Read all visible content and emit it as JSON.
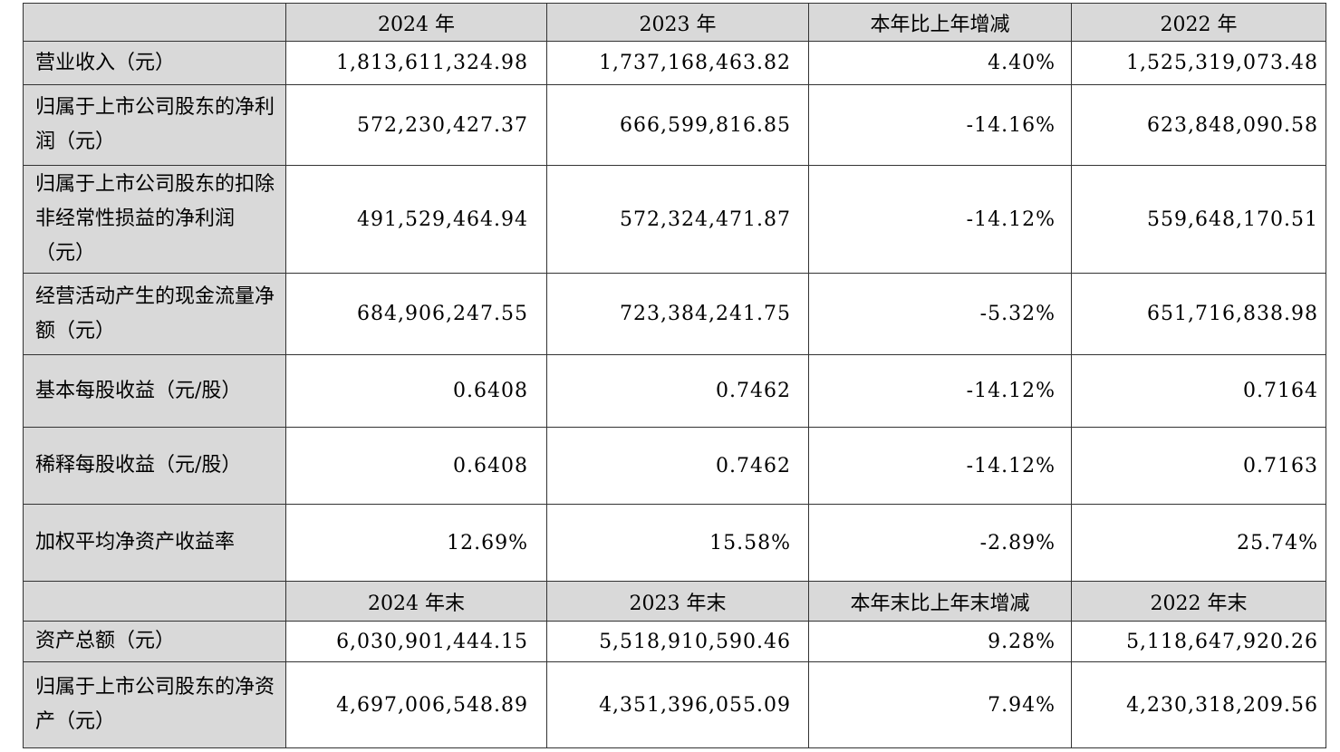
{
  "page": {
    "background": "#ffffff"
  },
  "table": {
    "type": "financial-summary-table",
    "colors": {
      "header_bg": "#d9d9d9",
      "label_bg": "#d9d9d9",
      "cell_bg": "#ffffff",
      "border": "#333333",
      "text": "#000000"
    },
    "sections": [
      {
        "header": {
          "col0": "",
          "col1": "2024 年",
          "col2": "2023 年",
          "col3": "本年比上年增减",
          "col4": "2022 年"
        },
        "rows": [
          {
            "label": "营业收入（元）",
            "values": [
              "1,813,611,324.98",
              "1,737,168,463.82",
              "4.40%",
              "1,525,319,073.48"
            ]
          },
          {
            "label": "归属于上市公司股东的净利润（元）",
            "values": [
              "572,230,427.37",
              "666,599,816.85",
              "-14.16%",
              "623,848,090.58"
            ]
          },
          {
            "label": "归属于上市公司股东的扣除非经常性损益的净利润（元）",
            "values": [
              "491,529,464.94",
              "572,324,471.87",
              "-14.12%",
              "559,648,170.51"
            ]
          },
          {
            "label": "经营活动产生的现金流量净额（元）",
            "values": [
              "684,906,247.55",
              "723,384,241.75",
              "-5.32%",
              "651,716,838.98"
            ]
          },
          {
            "label": "基本每股收益（元/股）",
            "values": [
              "0.6408",
              "0.7462",
              "-14.12%",
              "0.7164"
            ]
          },
          {
            "label": "稀释每股收益（元/股）",
            "values": [
              "0.6408",
              "0.7462",
              "-14.12%",
              "0.7163"
            ]
          },
          {
            "label": "加权平均净资产收益率",
            "values": [
              "12.69%",
              "15.58%",
              "-2.89%",
              "25.74%"
            ]
          }
        ]
      },
      {
        "header": {
          "col0": "",
          "col1": "2024 年末",
          "col2": "2023 年末",
          "col3": "本年末比上年末增减",
          "col4": "2022 年末"
        },
        "rows": [
          {
            "label": "资产总额（元）",
            "values": [
              "6,030,901,444.15",
              "5,518,910,590.46",
              "9.28%",
              "5,118,647,920.26"
            ]
          },
          {
            "label": "归属于上市公司股东的净资产（元）",
            "values": [
              "4,697,006,548.89",
              "4,351,396,055.09",
              "7.94%",
              "4,230,318,209.56"
            ]
          }
        ]
      }
    ]
  }
}
